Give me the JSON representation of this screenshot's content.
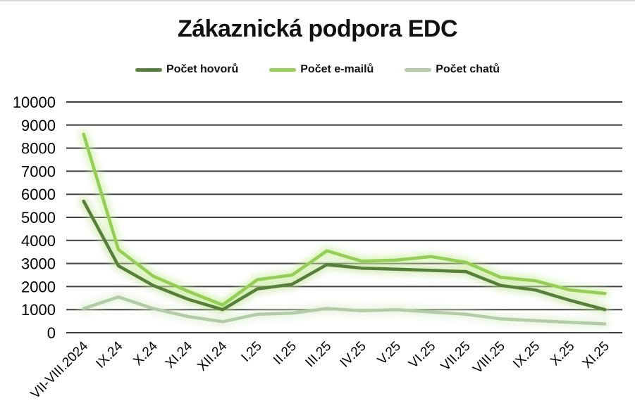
{
  "chart_data": {
    "type": "line",
    "title": "Zákaznická podpora EDC",
    "categories": [
      "VII-VIII.2024",
      "IX.24",
      "X.24",
      "XI.24",
      "XII.24",
      "I.25",
      "II.25",
      "III.25",
      "IV.25",
      "V.25",
      "VI.25",
      "VII.25",
      "VIII.25",
      "IX.25",
      "X.25",
      "XI.25"
    ],
    "series": [
      {
        "name": "Počet hovorů",
        "color": "#538135",
        "glow_color": "#c3e09b",
        "values": [
          5700,
          2900,
          2050,
          1450,
          1000,
          1900,
          2100,
          2950,
          2800,
          2750,
          2700,
          2650,
          2050,
          1850,
          1400,
          1000
        ]
      },
      {
        "name": "Počet e-mailů",
        "color": "#92d050",
        "glow_color": "#c9eb9e",
        "values": [
          8600,
          3600,
          2450,
          1800,
          1200,
          2300,
          2500,
          3550,
          3100,
          3150,
          3300,
          3050,
          2400,
          2250,
          1850,
          1700
        ]
      },
      {
        "name": "Počet chatů",
        "color": "#b1cda4",
        "glow_color": "#ddeccf",
        "values": [
          1050,
          1550,
          1050,
          700,
          480,
          800,
          850,
          1050,
          950,
          1000,
          900,
          800,
          600,
          520,
          450,
          380
        ]
      }
    ],
    "ylim": [
      0,
      10000
    ],
    "ytick_step": 1000,
    "y_tick_labels": [
      "0",
      "1000",
      "2000",
      "3000",
      "4000",
      "5000",
      "6000",
      "7000",
      "8000",
      "9000",
      "10000"
    ],
    "grid": "horizontal",
    "gridline_color": "#3f3f3f",
    "text_color": "#000000",
    "background_color": "#ffffff",
    "legend_position": "top",
    "line_glow": true
  }
}
